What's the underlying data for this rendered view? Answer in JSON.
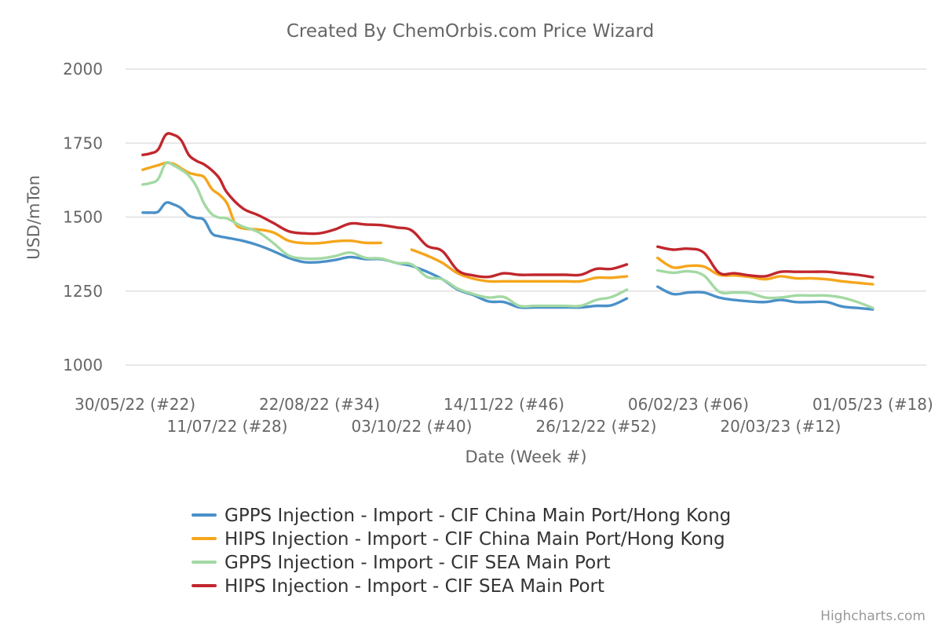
{
  "chart_data": {
    "type": "line",
    "title": "Created By ChemOrbis.com Price Wizard",
    "xlabel": "Date (Week #)",
    "ylabel": "USD/mTon",
    "ylim": [
      1000,
      2000
    ],
    "yticks": [
      1000,
      1250,
      1500,
      1750,
      2000
    ],
    "grid": true,
    "legend_position": "bottom-center",
    "x_start": "30/05/22",
    "x_tick_labels": [
      {
        "week": 0,
        "label": "30/05/22 (#22)"
      },
      {
        "week": 6,
        "label": "11/07/22 (#28)"
      },
      {
        "week": 12,
        "label": "22/08/22 (#34)"
      },
      {
        "week": 18,
        "label": "03/10/22 (#40)"
      },
      {
        "week": 24,
        "label": "14/11/22 (#46)"
      },
      {
        "week": 30,
        "label": "26/12/22 (#52)"
      },
      {
        "week": 36,
        "label": "06/02/23 (#06)"
      },
      {
        "week": 42,
        "label": "20/03/23 (#12)"
      },
      {
        "week": 48,
        "label": "01/05/23 (#18)"
      }
    ],
    "series": [
      {
        "name": "GPPS Injection - Import - CIF China Main Port/Hong Kong",
        "color": "#4a90c8",
        "points": [
          [
            0.5,
            1515
          ],
          [
            1,
            1515
          ],
          [
            1.5,
            1518
          ],
          [
            2,
            1548
          ],
          [
            2.5,
            1543
          ],
          [
            3,
            1530
          ],
          [
            3.5,
            1505
          ],
          [
            4,
            1497
          ],
          [
            4.5,
            1490
          ],
          [
            5,
            1445
          ],
          [
            5.5,
            1435
          ],
          [
            6,
            1430
          ],
          [
            7,
            1420
          ],
          [
            8,
            1405
          ],
          [
            9,
            1385
          ],
          [
            10,
            1362
          ],
          [
            11,
            1348
          ],
          [
            12,
            1348
          ],
          [
            13,
            1355
          ],
          [
            14,
            1365
          ],
          [
            15,
            1358
          ],
          [
            16,
            1358
          ],
          [
            17,
            1345
          ],
          [
            18,
            1335
          ],
          [
            19,
            1315
          ],
          [
            20,
            1290
          ],
          [
            21,
            1255
          ],
          [
            22,
            1237
          ],
          [
            23,
            1215
          ],
          [
            24,
            1213
          ],
          [
            25,
            1195
          ],
          [
            26,
            1195
          ],
          [
            27,
            1195
          ],
          [
            28,
            1195
          ],
          [
            29,
            1195
          ],
          [
            30,
            1200
          ],
          [
            31,
            1202
          ],
          [
            32,
            1225
          ],
          null,
          [
            34,
            1265
          ],
          [
            35,
            1240
          ],
          [
            36,
            1245
          ],
          [
            37,
            1245
          ],
          [
            38,
            1228
          ],
          [
            39,
            1220
          ],
          [
            40,
            1215
          ],
          [
            41,
            1213
          ],
          [
            42,
            1220
          ],
          [
            43,
            1213
          ],
          [
            44,
            1213
          ],
          [
            45,
            1213
          ],
          [
            46,
            1198
          ],
          [
            47,
            1193
          ],
          [
            48,
            1188
          ]
        ]
      },
      {
        "name": "HIPS Injection - Import - CIF China Main Port/Hong Kong",
        "color": "#f5a61c",
        "points": [
          [
            0.5,
            1660
          ],
          [
            1,
            1668
          ],
          [
            1.5,
            1675
          ],
          [
            2,
            1683
          ],
          [
            2.5,
            1680
          ],
          [
            3,
            1665
          ],
          [
            3.5,
            1650
          ],
          [
            4,
            1643
          ],
          [
            4.5,
            1635
          ],
          [
            5,
            1595
          ],
          [
            5.5,
            1575
          ],
          [
            6,
            1545
          ],
          [
            6.5,
            1480
          ],
          [
            7,
            1462
          ],
          [
            8,
            1458
          ],
          [
            9,
            1448
          ],
          [
            10,
            1420
          ],
          [
            11,
            1412
          ],
          [
            12,
            1412
          ],
          [
            13,
            1418
          ],
          [
            14,
            1420
          ],
          [
            15,
            1413
          ],
          [
            16,
            1413
          ],
          null,
          [
            18,
            1390
          ],
          [
            19,
            1370
          ],
          [
            20,
            1345
          ],
          [
            21,
            1310
          ],
          [
            22,
            1292
          ],
          [
            23,
            1283
          ],
          [
            24,
            1283
          ],
          [
            25,
            1283
          ],
          [
            26,
            1283
          ],
          [
            27,
            1283
          ],
          [
            28,
            1283
          ],
          [
            29,
            1283
          ],
          [
            30,
            1295
          ],
          [
            31,
            1295
          ],
          [
            32,
            1300
          ],
          null,
          [
            34,
            1362
          ],
          [
            35,
            1330
          ],
          [
            36,
            1335
          ],
          [
            37,
            1333
          ],
          [
            38,
            1305
          ],
          [
            39,
            1303
          ],
          [
            40,
            1298
          ],
          [
            41,
            1290
          ],
          [
            42,
            1300
          ],
          [
            43,
            1293
          ],
          [
            44,
            1293
          ],
          [
            45,
            1290
          ],
          [
            46,
            1283
          ],
          [
            47,
            1278
          ],
          [
            48,
            1273
          ]
        ]
      },
      {
        "name": "GPPS Injection - Import - CIF SEA Main Port",
        "color": "#a3d9a3",
        "points": [
          [
            0.5,
            1610
          ],
          [
            1,
            1615
          ],
          [
            1.5,
            1628
          ],
          [
            2,
            1682
          ],
          [
            2.5,
            1675
          ],
          [
            3,
            1660
          ],
          [
            3.5,
            1640
          ],
          [
            4,
            1603
          ],
          [
            4.5,
            1545
          ],
          [
            5,
            1510
          ],
          [
            5.5,
            1498
          ],
          [
            6,
            1495
          ],
          [
            7,
            1468
          ],
          [
            8,
            1450
          ],
          [
            9,
            1412
          ],
          [
            10,
            1370
          ],
          [
            11,
            1360
          ],
          [
            12,
            1360
          ],
          [
            13,
            1368
          ],
          [
            14,
            1380
          ],
          [
            15,
            1362
          ],
          [
            16,
            1360
          ],
          [
            17,
            1345
          ],
          [
            18,
            1340
          ],
          [
            19,
            1298
          ],
          [
            20,
            1290
          ],
          [
            21,
            1258
          ],
          [
            22,
            1240
          ],
          [
            23,
            1228
          ],
          [
            24,
            1230
          ],
          [
            25,
            1200
          ],
          [
            26,
            1200
          ],
          [
            27,
            1200
          ],
          [
            28,
            1200
          ],
          [
            29,
            1200
          ],
          [
            30,
            1220
          ],
          [
            31,
            1230
          ],
          [
            32,
            1255
          ],
          null,
          [
            34,
            1320
          ],
          [
            35,
            1312
          ],
          [
            36,
            1317
          ],
          [
            37,
            1303
          ],
          [
            38,
            1248
          ],
          [
            39,
            1245
          ],
          [
            40,
            1243
          ],
          [
            41,
            1228
          ],
          [
            42,
            1228
          ],
          [
            43,
            1235
          ],
          [
            44,
            1235
          ],
          [
            45,
            1235
          ],
          [
            46,
            1228
          ],
          [
            47,
            1213
          ],
          [
            48,
            1193
          ]
        ]
      },
      {
        "name": "HIPS Injection - Import - CIF SEA Main Port",
        "color": "#c1272d",
        "points": [
          [
            0.5,
            1710
          ],
          [
            1,
            1715
          ],
          [
            1.5,
            1728
          ],
          [
            2,
            1778
          ],
          [
            2.5,
            1778
          ],
          [
            3,
            1760
          ],
          [
            3.5,
            1710
          ],
          [
            4,
            1690
          ],
          [
            4.5,
            1678
          ],
          [
            5,
            1658
          ],
          [
            5.5,
            1630
          ],
          [
            6,
            1582
          ],
          [
            7,
            1530
          ],
          [
            8,
            1507
          ],
          [
            9,
            1480
          ],
          [
            10,
            1452
          ],
          [
            11,
            1445
          ],
          [
            12,
            1445
          ],
          [
            13,
            1458
          ],
          [
            14,
            1478
          ],
          [
            15,
            1475
          ],
          [
            16,
            1473
          ],
          [
            17,
            1465
          ],
          [
            18,
            1455
          ],
          [
            19,
            1403
          ],
          [
            20,
            1385
          ],
          [
            21,
            1320
          ],
          [
            22,
            1303
          ],
          [
            23,
            1298
          ],
          [
            24,
            1310
          ],
          [
            25,
            1305
          ],
          [
            26,
            1305
          ],
          [
            27,
            1305
          ],
          [
            28,
            1305
          ],
          [
            29,
            1305
          ],
          [
            30,
            1325
          ],
          [
            31,
            1325
          ],
          [
            32,
            1340
          ],
          null,
          [
            34,
            1400
          ],
          [
            35,
            1390
          ],
          [
            36,
            1393
          ],
          [
            37,
            1380
          ],
          [
            38,
            1312
          ],
          [
            39,
            1310
          ],
          [
            40,
            1303
          ],
          [
            41,
            1300
          ],
          [
            42,
            1315
          ],
          [
            43,
            1315
          ],
          [
            44,
            1315
          ],
          [
            45,
            1315
          ],
          [
            46,
            1310
          ],
          [
            47,
            1305
          ],
          [
            48,
            1297
          ]
        ]
      }
    ],
    "credits": "Highcharts.com"
  }
}
